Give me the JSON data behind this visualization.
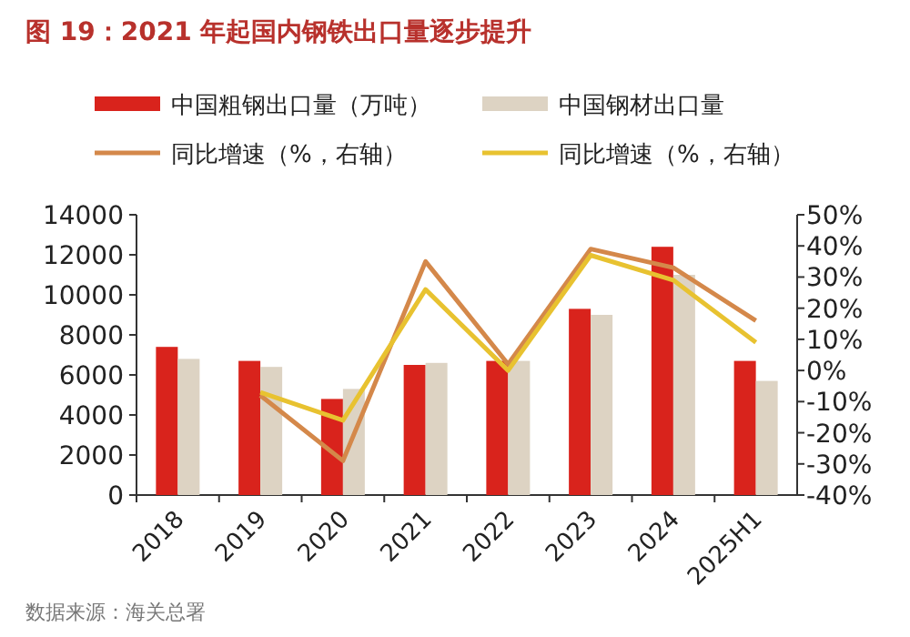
{
  "chart_data": {
    "type": "bar",
    "title": "图 19：2021 年起国内钢铁出口量逐步提升",
    "categories": [
      "2018",
      "2019",
      "2020",
      "2021",
      "2022",
      "2023",
      "2024",
      "2025H1"
    ],
    "series": [
      {
        "name": "中国粗钢出口量（万吨）",
        "color": "#d9231c",
        "values": [
          7400,
          6700,
          4800,
          6500,
          6700,
          9300,
          12400,
          6700
        ]
      },
      {
        "name": "中国钢材出口量",
        "color": "#ddd3c3",
        "values": [
          6800,
          6400,
          5300,
          6600,
          6700,
          9000,
          11000,
          5700
        ]
      },
      {
        "name": "同比增速（%，右轴）",
        "type": "line",
        "axis": "y2",
        "color": "#d4884a",
        "values": [
          null,
          -8,
          -29,
          35,
          2,
          39,
          33,
          16
        ]
      },
      {
        "name": "同比增速（%，右轴）",
        "type": "line",
        "axis": "y2",
        "color": "#e8c230",
        "values": [
          null,
          -7,
          -16,
          26,
          0,
          37,
          29,
          9
        ]
      }
    ],
    "ylim": [
      0,
      14000
    ],
    "yticks": [
      0,
      2000,
      4000,
      6000,
      8000,
      10000,
      12000,
      14000
    ],
    "y2lim": [
      -40,
      50
    ],
    "y2ticks": [
      {
        "value": -40,
        "label": "-40%"
      },
      {
        "value": -30,
        "label": "-30%"
      },
      {
        "value": -20,
        "label": "-20%"
      },
      {
        "value": -10,
        "label": "-10%"
      },
      {
        "value": 0,
        "label": "0%"
      },
      {
        "value": 10,
        "label": "10%"
      },
      {
        "value": 20,
        "label": "20%"
      },
      {
        "value": 30,
        "label": "30%"
      },
      {
        "value": 40,
        "label": "40%"
      },
      {
        "value": 50,
        "label": "50%"
      }
    ],
    "legend": "top",
    "grid": false,
    "annotations": [
      "数据来源：海关总署"
    ]
  }
}
